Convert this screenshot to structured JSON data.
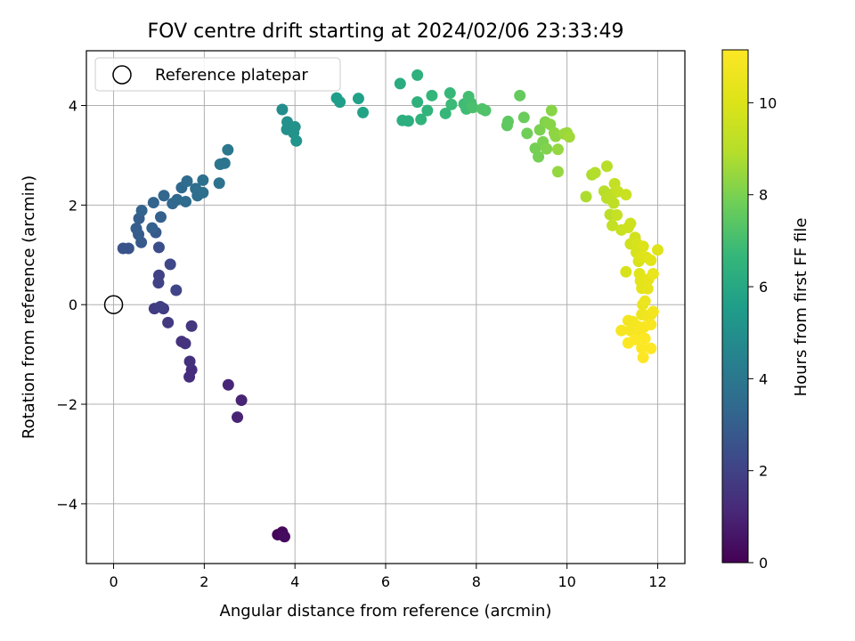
{
  "chart_data": {
    "type": "scatter",
    "title": "FOV centre drift starting at 2024/02/06 23:33:49",
    "xlabel": "Angular distance from reference (arcmin)",
    "ylabel": "Rotation from reference (arcmin)",
    "xlim": [
      -0.6,
      12.6
    ],
    "ylim": [
      -5.2,
      5.1
    ],
    "xticks": [
      0,
      2,
      4,
      6,
      8,
      10,
      12
    ],
    "yticks": [
      -4,
      -2,
      0,
      2,
      4
    ],
    "xtick_labels": [
      "0",
      "2",
      "4",
      "6",
      "8",
      "10",
      "12"
    ],
    "ytick_labels": [
      "−4",
      "−2",
      "0",
      "2",
      "4"
    ],
    "grid": true,
    "legend": {
      "placement": "upper-left",
      "entries": [
        "Reference platepar"
      ]
    },
    "reference_point": {
      "x": 0,
      "y": 0,
      "marker": "open-circle",
      "color": "#000000"
    },
    "colorbar": {
      "label": "Hours from first FF file",
      "min": 0,
      "max": 11.15,
      "ticks": [
        0,
        2,
        4,
        6,
        8,
        10
      ],
      "tick_labels": [
        "0",
        "2",
        "4",
        "6",
        "8",
        "10"
      ],
      "colormap": "viridis"
    },
    "points": [
      {
        "x": 3.62,
        "y": -4.62,
        "t": 0.1
      },
      {
        "x": 3.72,
        "y": -4.57,
        "t": 0.2
      },
      {
        "x": 3.77,
        "y": -4.66,
        "t": 0.3
      },
      {
        "x": 2.82,
        "y": -1.92,
        "t": 1.0
      },
      {
        "x": 2.73,
        "y": -2.26,
        "t": 1.0
      },
      {
        "x": 2.53,
        "y": -1.61,
        "t": 1.1
      },
      {
        "x": 1.72,
        "y": -1.31,
        "t": 1.3
      },
      {
        "x": 1.67,
        "y": -1.45,
        "t": 1.3
      },
      {
        "x": 1.68,
        "y": -1.14,
        "t": 1.4
      },
      {
        "x": 1.58,
        "y": -0.78,
        "t": 1.5
      },
      {
        "x": 1.5,
        "y": -0.74,
        "t": 1.5
      },
      {
        "x": 1.72,
        "y": -0.43,
        "t": 1.6
      },
      {
        "x": 1.2,
        "y": -0.36,
        "t": 1.7
      },
      {
        "x": 1.1,
        "y": -0.08,
        "t": 1.8
      },
      {
        "x": 0.9,
        "y": -0.08,
        "t": 1.8
      },
      {
        "x": 1.03,
        "y": -0.04,
        "t": 1.9
      },
      {
        "x": 0.99,
        "y": 0.44,
        "t": 2.0
      },
      {
        "x": 1.0,
        "y": 0.59,
        "t": 2.0
      },
      {
        "x": 1.38,
        "y": 0.29,
        "t": 2.1
      },
      {
        "x": 1.25,
        "y": 0.81,
        "t": 2.2
      },
      {
        "x": 1.0,
        "y": 1.15,
        "t": 2.4
      },
      {
        "x": 0.21,
        "y": 1.13,
        "t": 2.6
      },
      {
        "x": 0.33,
        "y": 1.13,
        "t": 2.6
      },
      {
        "x": 0.93,
        "y": 1.45,
        "t": 2.8
      },
      {
        "x": 0.61,
        "y": 1.25,
        "t": 2.8
      },
      {
        "x": 0.55,
        "y": 1.41,
        "t": 2.9
      },
      {
        "x": 0.5,
        "y": 1.53,
        "t": 3.0
      },
      {
        "x": 0.56,
        "y": 1.73,
        "t": 3.0
      },
      {
        "x": 0.85,
        "y": 1.54,
        "t": 3.1
      },
      {
        "x": 1.04,
        "y": 1.76,
        "t": 3.1
      },
      {
        "x": 0.62,
        "y": 1.89,
        "t": 3.2
      },
      {
        "x": 0.88,
        "y": 2.05,
        "t": 3.2
      },
      {
        "x": 1.11,
        "y": 2.19,
        "t": 3.3
      },
      {
        "x": 1.3,
        "y": 2.03,
        "t": 3.3
      },
      {
        "x": 1.4,
        "y": 2.11,
        "t": 3.4
      },
      {
        "x": 1.5,
        "y": 2.35,
        "t": 3.4
      },
      {
        "x": 1.62,
        "y": 2.48,
        "t": 3.5
      },
      {
        "x": 1.59,
        "y": 2.07,
        "t": 3.5
      },
      {
        "x": 1.85,
        "y": 2.19,
        "t": 3.6
      },
      {
        "x": 1.81,
        "y": 2.33,
        "t": 3.6
      },
      {
        "x": 1.97,
        "y": 2.25,
        "t": 3.7
      },
      {
        "x": 1.97,
        "y": 2.5,
        "t": 3.7
      },
      {
        "x": 2.33,
        "y": 2.44,
        "t": 3.8
      },
      {
        "x": 2.35,
        "y": 2.82,
        "t": 3.9
      },
      {
        "x": 2.45,
        "y": 2.84,
        "t": 3.9
      },
      {
        "x": 2.52,
        "y": 3.11,
        "t": 4.0
      },
      {
        "x": 3.72,
        "y": 3.92,
        "t": 4.9
      },
      {
        "x": 3.83,
        "y": 3.67,
        "t": 5.0
      },
      {
        "x": 3.82,
        "y": 3.52,
        "t": 5.0
      },
      {
        "x": 4.0,
        "y": 3.57,
        "t": 5.1
      },
      {
        "x": 3.97,
        "y": 3.45,
        "t": 5.1
      },
      {
        "x": 4.03,
        "y": 3.29,
        "t": 5.2
      },
      {
        "x": 4.92,
        "y": 4.15,
        "t": 5.6
      },
      {
        "x": 4.99,
        "y": 4.07,
        "t": 5.6
      },
      {
        "x": 5.4,
        "y": 4.14,
        "t": 5.7
      },
      {
        "x": 5.5,
        "y": 3.86,
        "t": 5.8
      },
      {
        "x": 6.32,
        "y": 4.44,
        "t": 6.2
      },
      {
        "x": 6.37,
        "y": 3.7,
        "t": 6.3
      },
      {
        "x": 6.5,
        "y": 3.69,
        "t": 6.3
      },
      {
        "x": 6.7,
        "y": 4.61,
        "t": 6.4
      },
      {
        "x": 6.7,
        "y": 4.07,
        "t": 6.4
      },
      {
        "x": 6.78,
        "y": 3.72,
        "t": 6.5
      },
      {
        "x": 6.92,
        "y": 3.9,
        "t": 6.5
      },
      {
        "x": 7.02,
        "y": 4.2,
        "t": 6.6
      },
      {
        "x": 7.32,
        "y": 3.84,
        "t": 6.7
      },
      {
        "x": 7.42,
        "y": 4.25,
        "t": 6.7
      },
      {
        "x": 7.45,
        "y": 4.02,
        "t": 6.8
      },
      {
        "x": 7.73,
        "y": 4.03,
        "t": 6.9
      },
      {
        "x": 7.78,
        "y": 3.93,
        "t": 6.9
      },
      {
        "x": 7.83,
        "y": 4.18,
        "t": 7.0
      },
      {
        "x": 7.88,
        "y": 4.05,
        "t": 7.0
      },
      {
        "x": 7.92,
        "y": 3.96,
        "t": 7.1
      },
      {
        "x": 8.13,
        "y": 3.93,
        "t": 7.2
      },
      {
        "x": 8.2,
        "y": 3.9,
        "t": 7.2
      },
      {
        "x": 8.68,
        "y": 3.6,
        "t": 7.5
      },
      {
        "x": 8.7,
        "y": 3.68,
        "t": 7.5
      },
      {
        "x": 8.96,
        "y": 4.2,
        "t": 7.6
      },
      {
        "x": 9.05,
        "y": 3.76,
        "t": 7.7
      },
      {
        "x": 9.12,
        "y": 3.44,
        "t": 7.8
      },
      {
        "x": 9.3,
        "y": 3.14,
        "t": 7.9
      },
      {
        "x": 9.37,
        "y": 2.97,
        "t": 7.9
      },
      {
        "x": 9.4,
        "y": 3.51,
        "t": 8.0
      },
      {
        "x": 9.47,
        "y": 3.27,
        "t": 8.0
      },
      {
        "x": 9.52,
        "y": 3.67,
        "t": 8.1
      },
      {
        "x": 9.55,
        "y": 3.13,
        "t": 8.1
      },
      {
        "x": 9.66,
        "y": 3.9,
        "t": 8.2
      },
      {
        "x": 9.63,
        "y": 3.62,
        "t": 8.2
      },
      {
        "x": 9.72,
        "y": 3.45,
        "t": 8.3
      },
      {
        "x": 9.75,
        "y": 3.38,
        "t": 8.3
      },
      {
        "x": 9.8,
        "y": 3.12,
        "t": 8.4
      },
      {
        "x": 9.8,
        "y": 2.67,
        "t": 8.4
      },
      {
        "x": 9.94,
        "y": 3.43,
        "t": 8.5
      },
      {
        "x": 10.0,
        "y": 3.45,
        "t": 8.5
      },
      {
        "x": 10.05,
        "y": 3.37,
        "t": 8.6
      },
      {
        "x": 10.42,
        "y": 2.17,
        "t": 8.8
      },
      {
        "x": 10.55,
        "y": 2.61,
        "t": 8.8
      },
      {
        "x": 10.62,
        "y": 2.65,
        "t": 8.9
      },
      {
        "x": 10.88,
        "y": 2.78,
        "t": 9.0
      },
      {
        "x": 10.82,
        "y": 2.28,
        "t": 9.0
      },
      {
        "x": 10.88,
        "y": 2.14,
        "t": 9.1
      },
      {
        "x": 10.95,
        "y": 1.81,
        "t": 9.1
      },
      {
        "x": 11.0,
        "y": 2.22,
        "t": 9.2
      },
      {
        "x": 11.03,
        "y": 2.04,
        "t": 9.2
      },
      {
        "x": 11.05,
        "y": 2.43,
        "t": 9.3
      },
      {
        "x": 11.0,
        "y": 1.59,
        "t": 9.3
      },
      {
        "x": 11.1,
        "y": 1.8,
        "t": 9.4
      },
      {
        "x": 11.12,
        "y": 2.27,
        "t": 9.4
      },
      {
        "x": 11.2,
        "y": 1.5,
        "t": 9.5
      },
      {
        "x": 11.3,
        "y": 2.21,
        "t": 9.5
      },
      {
        "x": 11.35,
        "y": 1.55,
        "t": 9.6
      },
      {
        "x": 11.4,
        "y": 1.63,
        "t": 9.6
      },
      {
        "x": 11.4,
        "y": 1.22,
        "t": 9.7
      },
      {
        "x": 11.5,
        "y": 1.35,
        "t": 9.7
      },
      {
        "x": 11.53,
        "y": 1.05,
        "t": 9.8
      },
      {
        "x": 11.55,
        "y": 1.22,
        "t": 9.8
      },
      {
        "x": 11.3,
        "y": 0.66,
        "t": 9.9
      },
      {
        "x": 11.58,
        "y": 0.87,
        "t": 9.9
      },
      {
        "x": 11.62,
        "y": 0.95,
        "t": 10.0
      },
      {
        "x": 11.68,
        "y": 1.17,
        "t": 10.0
      },
      {
        "x": 11.75,
        "y": 0.95,
        "t": 10.1
      },
      {
        "x": 12.0,
        "y": 1.1,
        "t": 10.1
      },
      {
        "x": 11.85,
        "y": 0.89,
        "t": 10.2
      },
      {
        "x": 11.6,
        "y": 0.62,
        "t": 10.2
      },
      {
        "x": 11.62,
        "y": 0.48,
        "t": 10.3
      },
      {
        "x": 11.65,
        "y": 0.33,
        "t": 10.3
      },
      {
        "x": 11.8,
        "y": 0.51,
        "t": 10.4
      },
      {
        "x": 11.78,
        "y": 0.32,
        "t": 10.4
      },
      {
        "x": 11.9,
        "y": 0.62,
        "t": 10.5
      },
      {
        "x": 11.67,
        "y": 0.0,
        "t": 10.5
      },
      {
        "x": 11.72,
        "y": 0.07,
        "t": 10.6
      },
      {
        "x": 11.65,
        "y": -0.2,
        "t": 10.6
      },
      {
        "x": 11.75,
        "y": -0.22,
        "t": 10.7
      },
      {
        "x": 11.85,
        "y": -0.2,
        "t": 10.7
      },
      {
        "x": 11.9,
        "y": -0.14,
        "t": 10.8
      },
      {
        "x": 11.45,
        "y": -0.34,
        "t": 10.8
      },
      {
        "x": 11.35,
        "y": -0.32,
        "t": 10.8
      },
      {
        "x": 11.2,
        "y": -0.52,
        "t": 10.9
      },
      {
        "x": 11.4,
        "y": -0.52,
        "t": 10.9
      },
      {
        "x": 11.55,
        "y": -0.43,
        "t": 10.9
      },
      {
        "x": 11.7,
        "y": -0.45,
        "t": 11.0
      },
      {
        "x": 11.85,
        "y": -0.4,
        "t": 11.0
      },
      {
        "x": 11.6,
        "y": -0.58,
        "t": 11.0
      },
      {
        "x": 11.72,
        "y": -0.68,
        "t": 11.1
      },
      {
        "x": 11.5,
        "y": -0.7,
        "t": 11.1
      },
      {
        "x": 11.35,
        "y": -0.77,
        "t": 11.1
      },
      {
        "x": 11.65,
        "y": -0.87,
        "t": 11.1
      },
      {
        "x": 11.85,
        "y": -0.88,
        "t": 11.15
      },
      {
        "x": 11.68,
        "y": -1.06,
        "t": 11.15
      }
    ]
  }
}
